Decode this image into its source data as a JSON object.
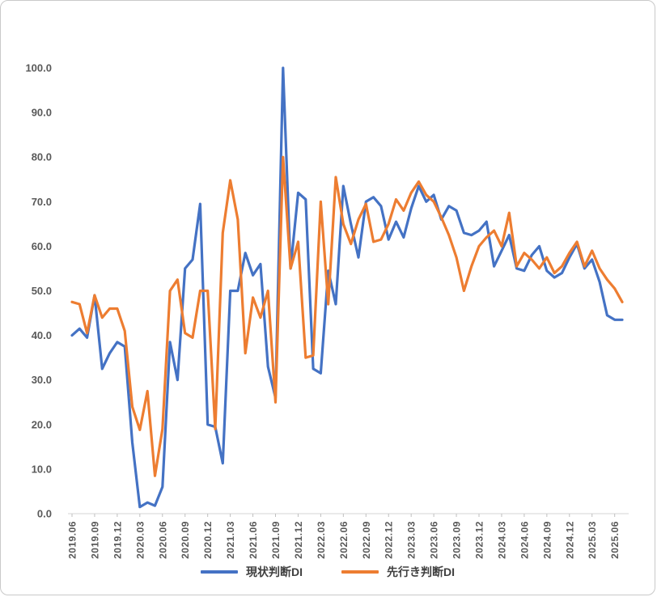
{
  "chart_data": {
    "type": "line",
    "title": "",
    "xlabel": "",
    "ylabel": "",
    "ylim": [
      0,
      100
    ],
    "ytick_step": 10,
    "grid": false,
    "legend_position": "bottom",
    "y_tick_labels": [
      "0.0",
      "10.0",
      "20.0",
      "30.0",
      "40.0",
      "50.0",
      "60.0",
      "70.0",
      "80.0",
      "90.0",
      "100.0"
    ],
    "x_tick_labels": [
      "2019.06",
      "2019.09",
      "2019.12",
      "2020.03",
      "2020.06",
      "2020.09",
      "2020.12",
      "2021.03",
      "2021.06",
      "2021.09",
      "2021.12",
      "2022.03",
      "2022.06",
      "2022.09",
      "2022.12",
      "2023.03",
      "2023.06",
      "2023.09",
      "2023.12",
      "2024.03",
      "2024.06",
      "2024.09",
      "2024.12",
      "2025.03",
      "2025.06"
    ],
    "points_per_tick": 3,
    "x_frequency": "monthly",
    "series": [
      {
        "name": "現状判断DI",
        "color": "#4472C4",
        "values": [
          40.0,
          41.5,
          39.5,
          49.0,
          32.5,
          36.0,
          38.5,
          37.5,
          16.0,
          1.5,
          2.5,
          1.8,
          6.0,
          38.5,
          30.0,
          55.0,
          57.0,
          69.5,
          20.0,
          19.5,
          11.3,
          50.0,
          50.0,
          58.5,
          53.5,
          56.0,
          33.0,
          26.0,
          100.0,
          55.0,
          72.0,
          70.5,
          32.5,
          31.5,
          54.5,
          47.0,
          73.5,
          65.0,
          57.5,
          70.0,
          71.0,
          69.0,
          61.5,
          65.5,
          62.0,
          68.5,
          73.5,
          70.0,
          71.5,
          66.0,
          69.0,
          68.0,
          63.0,
          62.5,
          63.5,
          65.5,
          55.5,
          59.0,
          62.5,
          55.0,
          54.5,
          58.0,
          60.0,
          54.5,
          53.0,
          54.0,
          57.5,
          60.5,
          55.0,
          57.0,
          52.0,
          44.5,
          43.5,
          43.5
        ]
      },
      {
        "name": "先行き判断DI",
        "color": "#ED7D31",
        "values": [
          47.5,
          47.0,
          40.5,
          49.0,
          44.0,
          46.0,
          46.0,
          41.0,
          24.0,
          18.8,
          27.5,
          8.5,
          19.0,
          50.0,
          52.5,
          40.5,
          39.5,
          50.0,
          50.0,
          19.0,
          63.0,
          74.8,
          66.0,
          36.0,
          48.5,
          44.0,
          50.0,
          25.0,
          80.0,
          55.0,
          61.0,
          35.0,
          35.5,
          70.0,
          47.0,
          75.5,
          65.0,
          60.5,
          66.0,
          69.5,
          61.0,
          61.5,
          65.0,
          70.5,
          68.0,
          72.0,
          74.5,
          71.5,
          70.0,
          66.5,
          62.5,
          57.5,
          50.0,
          55.5,
          60.0,
          62.0,
          63.5,
          60.0,
          67.5,
          55.5,
          58.5,
          57.0,
          55.0,
          57.5,
          54.0,
          55.5,
          58.5,
          61.0,
          55.5,
          59.0,
          55.0,
          52.5,
          50.5,
          47.5
        ]
      }
    ]
  },
  "legend": {
    "items": [
      {
        "label": "現状判断DI"
      },
      {
        "label": "先行き判断DI"
      }
    ]
  }
}
